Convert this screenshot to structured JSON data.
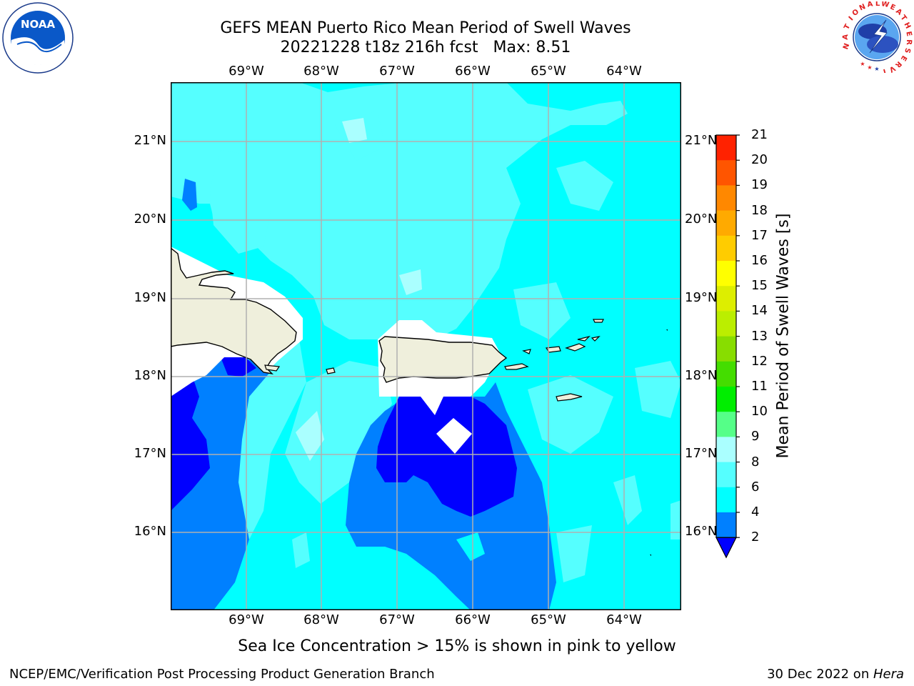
{
  "header": {
    "title_line1": "GEFS MEAN Puerto Rico Mean Period of Swell Waves",
    "title_line2": "20221228 t18z 216h fcst   Max: 8.51"
  },
  "logos": {
    "left": {
      "name": "noaa-logo",
      "text": "NOAA"
    },
    "right": {
      "name": "national-weather-service-logo",
      "text": "NATIONAL WEATHER SERVICE"
    }
  },
  "map": {
    "lon_labels": [
      "69°W",
      "68°W",
      "67°W",
      "66°W",
      "65°W",
      "64°W"
    ],
    "lat_labels": [
      "21°N",
      "20°N",
      "19°N",
      "18°N",
      "17°N",
      "16°N"
    ],
    "colors": {
      "ocean": "#00ffff",
      "light_cyan": "#55ffff",
      "pale_cyan": "#aaffff",
      "medium_blue": "#0080ff",
      "deep_blue": "#0000ff",
      "land": "#efefdc",
      "gridline": "#b0b0b0"
    }
  },
  "colorbar": {
    "label": "Mean Period of Swell Waves [s]",
    "ticks": [
      "2",
      "4",
      "6",
      "8",
      "9",
      "10",
      "11",
      "12",
      "13",
      "14",
      "15",
      "16",
      "17",
      "18",
      "19",
      "20",
      "21"
    ],
    "colors": [
      "#0000ff",
      "#0080ff",
      "#00ffff",
      "#55ffff",
      "#aaffff",
      "#55ff88",
      "#00ee00",
      "#44dd00",
      "#88dd00",
      "#bbee00",
      "#ddee00",
      "#ffff00",
      "#ffcc00",
      "#ffaa00",
      "#ff8800",
      "#ff5500",
      "#ff2200",
      "#ff0000"
    ]
  },
  "footer": {
    "note": "Sea Ice Concentration > 15% is shown in pink to yellow",
    "credit": "NCEP/EMC/Verification Post Processing Product Generation Branch",
    "date": "30 Dec 2022 on ",
    "host": "Hera"
  }
}
